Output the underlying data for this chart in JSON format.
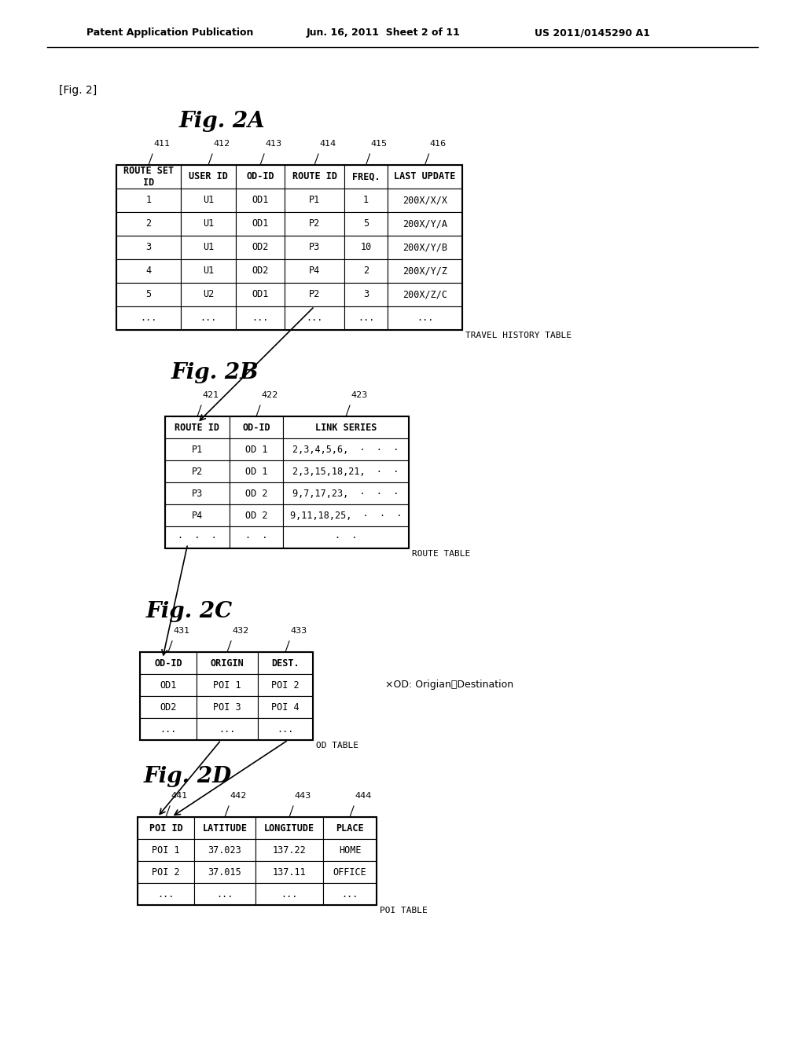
{
  "header_text_left": "Patent Application Publication",
  "header_text_mid": "Jun. 16, 2011  Sheet 2 of 11",
  "header_text_right": "US 2011/0145290 A1",
  "fig_label": "[Fig. 2]",
  "background_color": "#ffffff",
  "fig2a_title": "Fig. 2A",
  "fig2a_col_labels": [
    "411",
    "412",
    "413",
    "414",
    "415",
    "416"
  ],
  "fig2a_headers": [
    "ROUTE SET\nID",
    "USER ID",
    "OD-ID",
    "ROUTE ID",
    "FREQ.",
    "LAST UPDATE"
  ],
  "fig2a_rows": [
    [
      "1",
      "U1",
      "OD1",
      "P1",
      "1",
      "200X/X/X"
    ],
    [
      "2",
      "U1",
      "OD1",
      "P2",
      "5",
      "200X/Y/A"
    ],
    [
      "3",
      "U1",
      "OD2",
      "P3",
      "10",
      "200X/Y/B"
    ],
    [
      "4",
      "U1",
      "OD2",
      "P4",
      "2",
      "200X/Y/Z"
    ],
    [
      "5",
      "U2",
      "OD1",
      "P2",
      "3",
      "200X/Z/C"
    ],
    [
      "...",
      "...",
      "...",
      "...",
      "...",
      "..."
    ]
  ],
  "fig2a_label": "TRAVEL HISTORY TABLE",
  "fig2b_title": "Fig. 2B",
  "fig2b_col_labels": [
    "421",
    "422",
    "423"
  ],
  "fig2b_headers": [
    "ROUTE ID",
    "OD-ID",
    "LINK SERIES"
  ],
  "fig2b_rows": [
    [
      "P1",
      "OD 1",
      "2,3,4,5,6,  ·  ·  ·"
    ],
    [
      "P2",
      "OD 1",
      "2,3,15,18,21,  ·  ·"
    ],
    [
      "P3",
      "OD 2",
      "9,7,17,23,  ·  ·  ·"
    ],
    [
      "P4",
      "OD 2",
      "9,11,18,25,  ·  ·  ·"
    ],
    [
      "·  ·  ·",
      "·  ·",
      "·  ·"
    ]
  ],
  "fig2b_label": "ROUTE TABLE",
  "fig2c_title": "Fig. 2C",
  "fig2c_col_labels": [
    "431",
    "432",
    "433"
  ],
  "fig2c_headers": [
    "OD-ID",
    "ORIGIN",
    "DEST."
  ],
  "fig2c_rows": [
    [
      "OD1",
      "POI 1",
      "POI 2"
    ],
    [
      "OD2",
      "POI 3",
      "POI 4"
    ],
    [
      "...",
      "...",
      "..."
    ]
  ],
  "fig2c_label": "OD TABLE",
  "fig2c_note": "×OD: Origian／Destination",
  "fig2d_title": "Fig. 2D",
  "fig2d_col_labels": [
    "441",
    "442",
    "443",
    "444"
  ],
  "fig2d_headers": [
    "POI ID",
    "LATITUDE",
    "LONGITUDE",
    "PLACE"
  ],
  "fig2d_rows": [
    [
      "POI 1",
      "37.023",
      "137.22",
      "HOME"
    ],
    [
      "POI 2",
      "37.015",
      "137.11",
      "OFFICE"
    ],
    [
      "...",
      "...",
      "...",
      "..."
    ]
  ],
  "fig2d_label": "POI TABLE"
}
